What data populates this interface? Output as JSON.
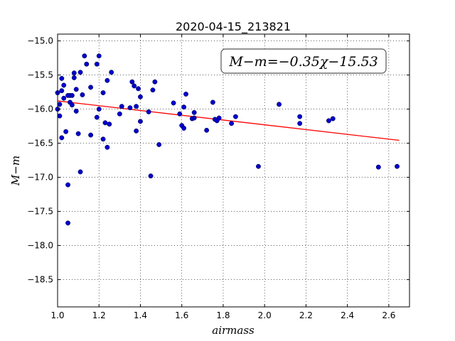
{
  "chart_data": {
    "type": "scatter",
    "title": "2020-04-15_213821",
    "xlabel": "airmass",
    "ylabel": "M−m",
    "xlim": [
      1.0,
      2.7
    ],
    "ylim": [
      -18.9,
      -14.9
    ],
    "y_inverted": true,
    "grid": true,
    "xticks": [
      1.0,
      1.2,
      1.4,
      1.6,
      1.8,
      2.0,
      2.2,
      2.4,
      2.6
    ],
    "xtick_labels": [
      "1.0",
      "1.2",
      "1.4",
      "1.6",
      "1.8",
      "2.0",
      "2.2",
      "2.4",
      "2.6"
    ],
    "yticks": [
      -15.0,
      -15.5,
      -16.0,
      -16.5,
      -17.0,
      -17.5,
      -18.0,
      -18.5
    ],
    "ytick_labels": [
      "−15.0",
      "−15.5",
      "−16.0",
      "−16.5",
      "−17.0",
      "−17.5",
      "−18.0",
      "−18.5"
    ],
    "annotation": "M−m=−0.35χ−15.53",
    "point_color": "#0000cc",
    "fit_color": "#ff0000",
    "fit": {
      "slope": -0.35,
      "intercept": -15.53,
      "x_range": [
        1.0,
        2.65
      ]
    },
    "points": [
      [
        1.0,
        -15.76
      ],
      [
        1.0,
        -16.0
      ],
      [
        1.01,
        -15.93
      ],
      [
        1.01,
        -16.1
      ],
      [
        1.02,
        -15.55
      ],
      [
        1.02,
        -15.73
      ],
      [
        1.02,
        -16.42
      ],
      [
        1.03,
        -15.65
      ],
      [
        1.03,
        -15.84
      ],
      [
        1.04,
        -16.33
      ],
      [
        1.05,
        -15.8
      ],
      [
        1.05,
        -17.11
      ],
      [
        1.05,
        -17.67
      ],
      [
        1.06,
        -15.8
      ],
      [
        1.06,
        -15.9
      ],
      [
        1.07,
        -15.94
      ],
      [
        1.07,
        -15.8
      ],
      [
        1.08,
        -15.54
      ],
      [
        1.08,
        -15.47
      ],
      [
        1.09,
        -15.71
      ],
      [
        1.09,
        -16.03
      ],
      [
        1.1,
        -16.36
      ],
      [
        1.11,
        -15.46
      ],
      [
        1.11,
        -16.92
      ],
      [
        1.12,
        -15.79
      ],
      [
        1.13,
        -15.22
      ],
      [
        1.14,
        -15.34
      ],
      [
        1.16,
        -16.38
      ],
      [
        1.16,
        -15.68
      ],
      [
        1.19,
        -15.34
      ],
      [
        1.19,
        -16.12
      ],
      [
        1.2,
        -15.22
      ],
      [
        1.2,
        -16.0
      ],
      [
        1.22,
        -15.76
      ],
      [
        1.22,
        -16.44
      ],
      [
        1.23,
        -16.2
      ],
      [
        1.24,
        -15.58
      ],
      [
        1.24,
        -16.56
      ],
      [
        1.25,
        -16.22
      ],
      [
        1.26,
        -15.46
      ],
      [
        1.3,
        -16.07
      ],
      [
        1.31,
        -15.96
      ],
      [
        1.35,
        -15.98
      ],
      [
        1.36,
        -15.6
      ],
      [
        1.37,
        -15.66
      ],
      [
        1.38,
        -15.96
      ],
      [
        1.38,
        -16.32
      ],
      [
        1.39,
        -15.7
      ],
      [
        1.4,
        -15.82
      ],
      [
        1.4,
        -16.18
      ],
      [
        1.44,
        -16.04
      ],
      [
        1.45,
        -16.98
      ],
      [
        1.46,
        -15.72
      ],
      [
        1.47,
        -15.6
      ],
      [
        1.49,
        -16.52
      ],
      [
        1.56,
        -15.91
      ],
      [
        1.59,
        -16.07
      ],
      [
        1.6,
        -16.24
      ],
      [
        1.61,
        -15.97
      ],
      [
        1.61,
        -16.28
      ],
      [
        1.62,
        -15.78
      ],
      [
        1.65,
        -16.14
      ],
      [
        1.66,
        -16.05
      ],
      [
        1.66,
        -16.13
      ],
      [
        1.72,
        -16.31
      ],
      [
        1.75,
        -15.9
      ],
      [
        1.76,
        -16.15
      ],
      [
        1.77,
        -16.17
      ],
      [
        1.78,
        -16.13
      ],
      [
        1.84,
        -16.21
      ],
      [
        1.86,
        -16.11
      ],
      [
        1.97,
        -16.84
      ],
      [
        2.07,
        -15.93
      ],
      [
        2.17,
        -16.21
      ],
      [
        2.17,
        -16.11
      ],
      [
        2.31,
        -16.17
      ],
      [
        2.33,
        -16.14
      ],
      [
        2.55,
        -16.85
      ],
      [
        2.64,
        -16.84
      ]
    ]
  }
}
